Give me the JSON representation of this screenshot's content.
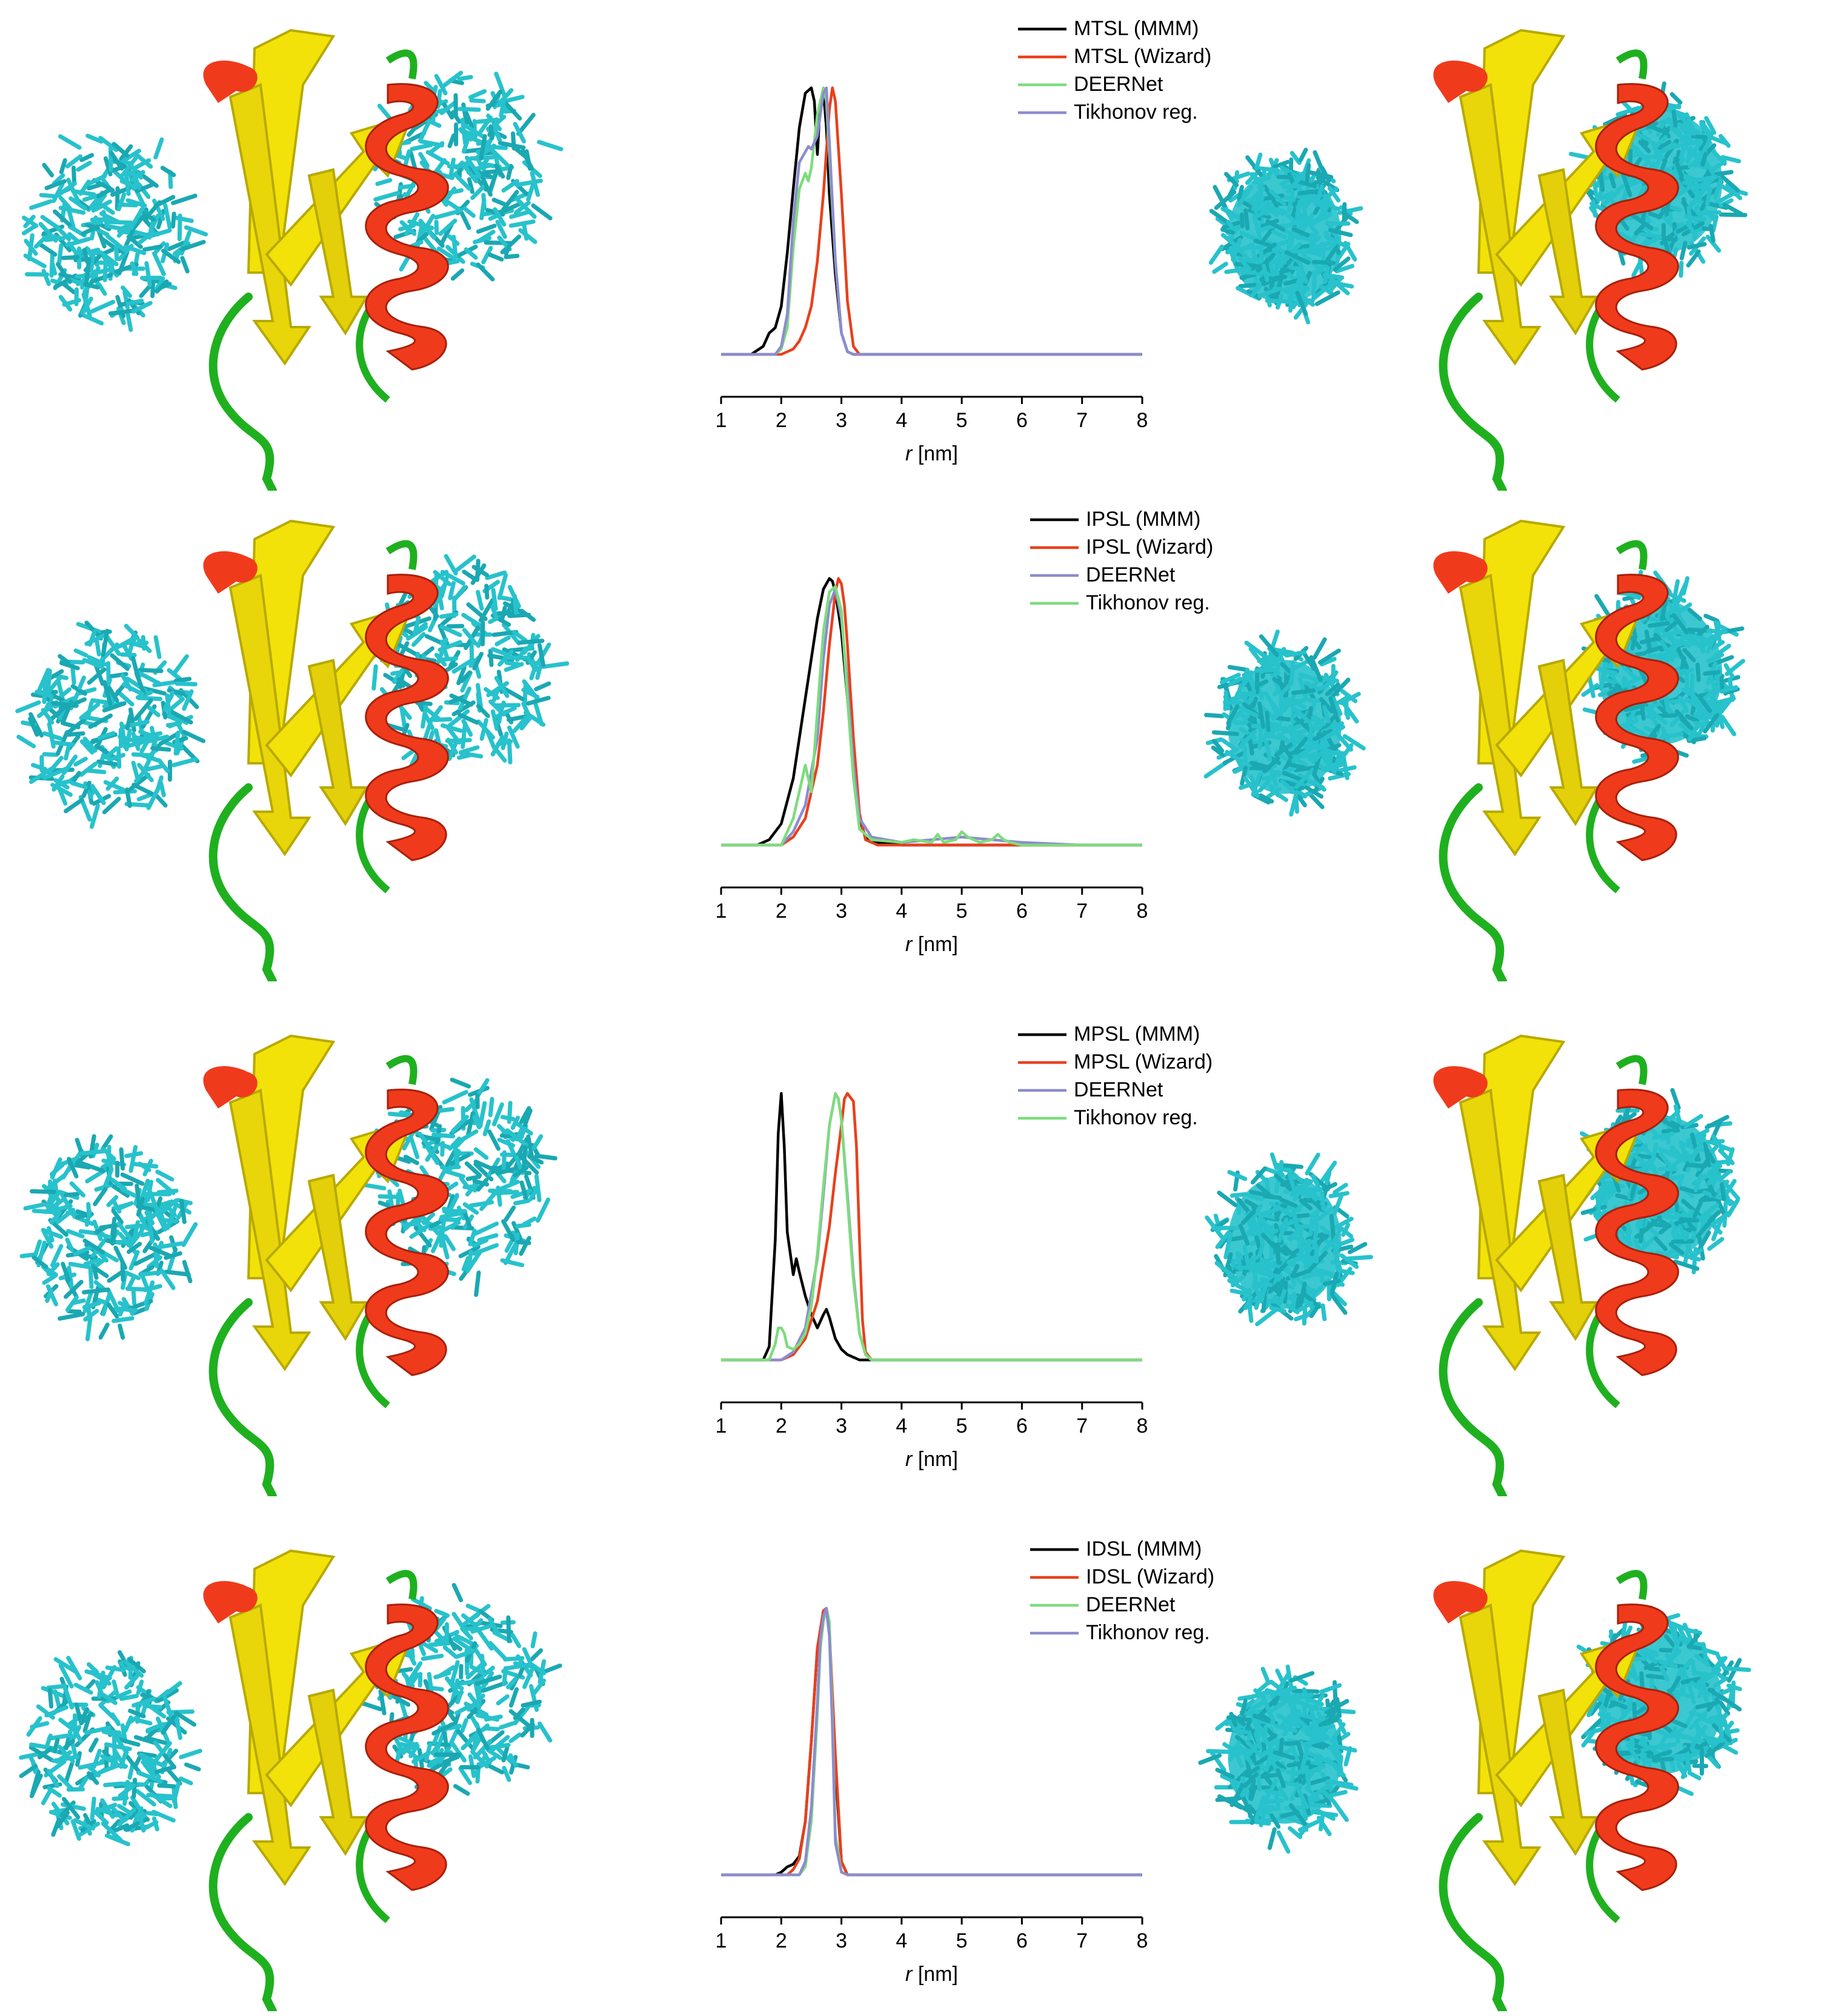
{
  "colors": {
    "black": "#000000",
    "red": "#e8401c",
    "green": "#7ddc7d",
    "blue": "#8c8ccf",
    "cyan": "#27c2cc",
    "helix": "#f03a1c",
    "sheet": "#f2e20a",
    "loop": "#1fb01f"
  },
  "icons": [
    "protein-structure-with-label-ensemble",
    "protein-structure-with-density-cloud"
  ],
  "chart_data": [
    {
      "type": "line",
      "xlabel_symbol": "r",
      "xlabel_unit": "[nm]",
      "xlim": [
        1,
        8
      ],
      "xticks": [
        "1",
        "2",
        "3",
        "4",
        "5",
        "6",
        "7",
        "8"
      ],
      "legend_position": "top-right",
      "series": [
        {
          "name": "MTSL (MMM)",
          "color": "black",
          "x": [
            1,
            1.5,
            1.7,
            1.8,
            1.9,
            2.0,
            2.1,
            2.2,
            2.3,
            2.4,
            2.5,
            2.55,
            2.6,
            2.65,
            2.7,
            2.75,
            2.8,
            2.9,
            3.0,
            3.1,
            3.2,
            3.3,
            4,
            5,
            6,
            7,
            8
          ],
          "y": [
            0,
            0,
            0.03,
            0.08,
            0.1,
            0.18,
            0.38,
            0.62,
            0.85,
            0.98,
            1.0,
            0.95,
            0.75,
            0.95,
            0.99,
            0.85,
            0.6,
            0.3,
            0.08,
            0.01,
            0,
            0,
            0,
            0,
            0,
            0,
            0
          ]
        },
        {
          "name": "MTSL (Wizard)",
          "color": "red",
          "x": [
            1,
            2.0,
            2.2,
            2.3,
            2.4,
            2.5,
            2.6,
            2.7,
            2.8,
            2.85,
            2.9,
            3.0,
            3.1,
            3.2,
            3.3,
            4,
            5,
            6,
            7,
            8
          ],
          "y": [
            0,
            0,
            0.02,
            0.05,
            0.1,
            0.18,
            0.35,
            0.6,
            0.92,
            1.0,
            0.95,
            0.6,
            0.2,
            0.03,
            0,
            0,
            0,
            0,
            0,
            0
          ]
        },
        {
          "name": "DEERNet",
          "color": "green",
          "x": [
            1,
            1.9,
            2.0,
            2.1,
            2.2,
            2.3,
            2.4,
            2.45,
            2.5,
            2.6,
            2.7,
            2.75,
            2.8,
            2.9,
            3.0,
            3.1,
            3.2,
            4,
            5,
            6,
            7,
            8
          ],
          "y": [
            0,
            0,
            0.02,
            0.1,
            0.4,
            0.62,
            0.68,
            0.65,
            0.7,
            0.9,
            1.0,
            0.95,
            0.75,
            0.35,
            0.08,
            0.01,
            0,
            0,
            0,
            0,
            0,
            0
          ]
        },
        {
          "name": "Tikhonov reg.",
          "color": "blue",
          "x": [
            1,
            1.9,
            2.0,
            2.1,
            2.2,
            2.3,
            2.4,
            2.45,
            2.5,
            2.6,
            2.7,
            2.75,
            2.8,
            2.9,
            3.0,
            3.1,
            3.2,
            4,
            5,
            6,
            7,
            8
          ],
          "y": [
            0,
            0,
            0.03,
            0.15,
            0.5,
            0.72,
            0.76,
            0.78,
            0.77,
            0.82,
            0.98,
            1.0,
            0.8,
            0.35,
            0.08,
            0.01,
            0,
            0,
            0,
            0,
            0,
            0
          ]
        }
      ]
    },
    {
      "type": "line",
      "xlabel_symbol": "r",
      "xlabel_unit": "[nm]",
      "xlim": [
        1,
        8
      ],
      "xticks": [
        "1",
        "2",
        "3",
        "4",
        "5",
        "6",
        "7",
        "8"
      ],
      "legend_position": "top-right",
      "series": [
        {
          "name": "IPSL (MMM)",
          "color": "black",
          "x": [
            1,
            1.6,
            1.8,
            2.0,
            2.2,
            2.4,
            2.6,
            2.7,
            2.8,
            2.85,
            2.9,
            3.0,
            3.1,
            3.2,
            3.3,
            3.4,
            3.6,
            4,
            5,
            6,
            7,
            8
          ],
          "y": [
            0,
            0,
            0.02,
            0.08,
            0.25,
            0.55,
            0.85,
            0.96,
            1.0,
            0.99,
            0.95,
            0.8,
            0.55,
            0.3,
            0.1,
            0.03,
            0.01,
            0,
            0,
            0,
            0,
            0
          ]
        },
        {
          "name": "IPSL (Wizard)",
          "color": "red",
          "x": [
            1,
            2.0,
            2.2,
            2.4,
            2.6,
            2.7,
            2.8,
            2.9,
            2.95,
            3.0,
            3.05,
            3.1,
            3.2,
            3.3,
            3.4,
            3.6,
            4,
            5,
            6,
            7,
            8
          ],
          "y": [
            0,
            0,
            0.03,
            0.1,
            0.3,
            0.5,
            0.75,
            0.95,
            1.0,
            0.98,
            0.9,
            0.75,
            0.4,
            0.12,
            0.02,
            0,
            0,
            0,
            0,
            0,
            0
          ]
        },
        {
          "name": "DEERNet",
          "color": "blue",
          "x": [
            1,
            2.0,
            2.2,
            2.4,
            2.6,
            2.7,
            2.8,
            2.9,
            3.0,
            3.1,
            3.2,
            3.3,
            3.5,
            4,
            4.5,
            5,
            5.5,
            6,
            7,
            8
          ],
          "y": [
            0,
            0,
            0.05,
            0.15,
            0.4,
            0.7,
            0.9,
            0.96,
            0.85,
            0.6,
            0.3,
            0.1,
            0.03,
            0.01,
            0.02,
            0.03,
            0.02,
            0.01,
            0,
            0
          ]
        },
        {
          "name": "Tikhonov reg.",
          "color": "green",
          "x": [
            1,
            2.0,
            2.2,
            2.3,
            2.4,
            2.5,
            2.6,
            2.7,
            2.8,
            2.9,
            3.0,
            3.1,
            3.2,
            3.3,
            3.5,
            4,
            4.2,
            4.5,
            4.6,
            4.7,
            4.9,
            5.0,
            5.1,
            5.3,
            5.5,
            5.6,
            5.7,
            5.8,
            6,
            7,
            8
          ],
          "y": [
            0,
            0,
            0.1,
            0.2,
            0.3,
            0.2,
            0.5,
            0.8,
            0.95,
            0.97,
            0.88,
            0.55,
            0.25,
            0.06,
            0.02,
            0.01,
            0.02,
            0.01,
            0.04,
            0.01,
            0.02,
            0.05,
            0.03,
            0.01,
            0.02,
            0.04,
            0.02,
            0.01,
            0,
            0,
            0
          ]
        }
      ]
    },
    {
      "type": "line",
      "xlabel_symbol": "r",
      "xlabel_unit": "[nm]",
      "xlim": [
        1,
        8
      ],
      "xticks": [
        "1",
        "2",
        "3",
        "4",
        "5",
        "6",
        "7",
        "8"
      ],
      "legend_position": "top-right",
      "series": [
        {
          "name": "MPSL (MMM)",
          "color": "black",
          "x": [
            1,
            1.7,
            1.8,
            1.9,
            1.95,
            2.0,
            2.05,
            2.1,
            2.2,
            2.25,
            2.3,
            2.4,
            2.5,
            2.6,
            2.7,
            2.75,
            2.8,
            2.9,
            3.0,
            3.1,
            3.3,
            4,
            5,
            6,
            7,
            8
          ],
          "y": [
            0,
            0,
            0.05,
            0.45,
            0.85,
            1.0,
            0.8,
            0.48,
            0.32,
            0.38,
            0.33,
            0.24,
            0.17,
            0.12,
            0.17,
            0.19,
            0.16,
            0.08,
            0.04,
            0.02,
            0,
            0,
            0,
            0,
            0,
            0
          ]
        },
        {
          "name": "MPSL (Wizard)",
          "color": "red",
          "x": [
            1,
            2.0,
            2.2,
            2.4,
            2.6,
            2.8,
            2.9,
            3.0,
            3.05,
            3.1,
            3.2,
            3.25,
            3.3,
            3.35,
            3.4,
            3.5,
            4,
            5,
            6,
            7,
            8
          ],
          "y": [
            0,
            0,
            0.02,
            0.08,
            0.22,
            0.5,
            0.7,
            0.88,
            0.98,
            1.0,
            0.97,
            0.8,
            0.45,
            0.15,
            0.03,
            0,
            0,
            0,
            0,
            0,
            0
          ]
        },
        {
          "name": "DEERNet",
          "color": "blue",
          "x": [
            1,
            2.0,
            2.2,
            2.4,
            2.6,
            2.7,
            2.8,
            2.9,
            2.95,
            3.0,
            3.1,
            3.2,
            3.3,
            3.4,
            3.5,
            4,
            5,
            6,
            7,
            8
          ],
          "y": [
            0,
            0,
            0.03,
            0.12,
            0.38,
            0.62,
            0.88,
            1.0,
            0.98,
            0.9,
            0.62,
            0.32,
            0.1,
            0.02,
            0,
            0,
            0,
            0,
            0,
            0
          ]
        },
        {
          "name": "Tikhonov reg.",
          "color": "green",
          "x": [
            1,
            1.8,
            1.9,
            1.95,
            2.0,
            2.05,
            2.1,
            2.2,
            2.3,
            2.4,
            2.5,
            2.6,
            2.7,
            2.8,
            2.9,
            2.95,
            3.0,
            3.1,
            3.2,
            3.3,
            3.4,
            3.5,
            4,
            5,
            6,
            7,
            8
          ],
          "y": [
            0,
            0,
            0.06,
            0.12,
            0.12,
            0.1,
            0.05,
            0.04,
            0.06,
            0.1,
            0.2,
            0.4,
            0.65,
            0.88,
            1.0,
            0.98,
            0.9,
            0.6,
            0.3,
            0.1,
            0.02,
            0,
            0,
            0,
            0,
            0,
            0
          ]
        }
      ]
    },
    {
      "type": "line",
      "xlabel_symbol": "r",
      "xlabel_unit": "[nm]",
      "xlim": [
        1,
        8
      ],
      "xticks": [
        "1",
        "2",
        "3",
        "4",
        "5",
        "6",
        "7",
        "8"
      ],
      "legend_position": "top-right",
      "series": [
        {
          "name": "IDSL (MMM)",
          "color": "black",
          "x": [
            1,
            1.9,
            2.0,
            2.1,
            2.2,
            2.3,
            2.4,
            2.5,
            2.6,
            2.7,
            2.75,
            2.8,
            2.9,
            3.0,
            3.1,
            3.2,
            4,
            5,
            6,
            7,
            8
          ],
          "y": [
            0,
            0,
            0.01,
            0.03,
            0.04,
            0.07,
            0.2,
            0.5,
            0.85,
            0.99,
            1.0,
            0.9,
            0.4,
            0.05,
            0,
            0,
            0,
            0,
            0,
            0,
            0
          ]
        },
        {
          "name": "IDSL (Wizard)",
          "color": "red",
          "x": [
            1,
            2.1,
            2.2,
            2.3,
            2.4,
            2.5,
            2.6,
            2.7,
            2.75,
            2.8,
            2.9,
            3.0,
            3.1,
            3.2,
            4,
            5,
            6,
            7,
            8
          ],
          "y": [
            0,
            0,
            0.02,
            0.06,
            0.2,
            0.5,
            0.85,
            0.99,
            1.0,
            0.92,
            0.45,
            0.05,
            0,
            0,
            0,
            0,
            0,
            0,
            0
          ]
        },
        {
          "name": "DEERNet",
          "color": "green",
          "x": [
            1,
            2.3,
            2.4,
            2.5,
            2.6,
            2.65,
            2.7,
            2.75,
            2.8,
            2.85,
            2.9,
            3.0,
            3.1,
            4,
            5,
            6,
            7,
            8
          ],
          "y": [
            0,
            0,
            0.03,
            0.2,
            0.6,
            0.85,
            0.95,
            1.0,
            0.95,
            0.6,
            0.15,
            0.01,
            0,
            0,
            0,
            0,
            0,
            0
          ]
        },
        {
          "name": "Tikhonov reg.",
          "color": "blue",
          "x": [
            1,
            2.3,
            2.4,
            2.5,
            2.6,
            2.65,
            2.7,
            2.75,
            2.8,
            2.85,
            2.9,
            3.0,
            3.1,
            4,
            5,
            6,
            7,
            8
          ],
          "y": [
            0,
            0,
            0.05,
            0.25,
            0.65,
            0.88,
            0.97,
            1.0,
            0.9,
            0.55,
            0.12,
            0.01,
            0,
            0,
            0,
            0,
            0,
            0
          ]
        }
      ]
    }
  ]
}
